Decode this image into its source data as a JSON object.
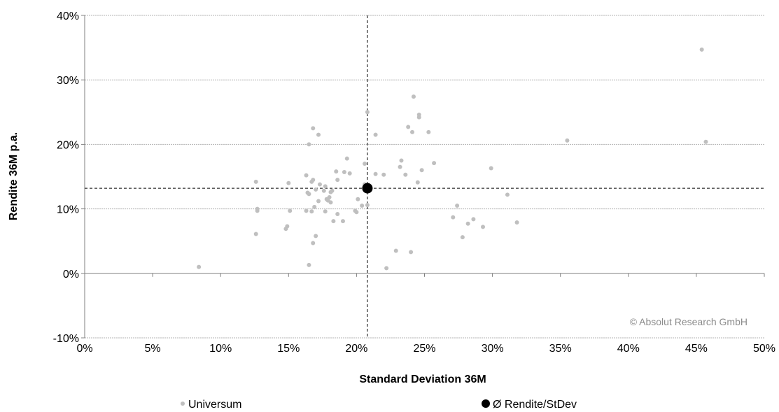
{
  "chart_data": {
    "type": "scatter",
    "xlabel": "Standard Deviation 36M",
    "ylabel": "Rendite 36M p.a.",
    "xlim": [
      0,
      50
    ],
    "ylim": [
      -10,
      40
    ],
    "x_ticks": [
      0,
      5,
      10,
      15,
      20,
      25,
      30,
      35,
      40,
      45,
      50
    ],
    "y_ticks": [
      -10,
      0,
      10,
      20,
      30,
      40
    ],
    "x_tick_labels": [
      "0%",
      "5%",
      "10%",
      "15%",
      "20%",
      "25%",
      "30%",
      "35%",
      "40%",
      "45%",
      "50%"
    ],
    "y_tick_labels": [
      "-10%",
      "0%",
      "10%",
      "20%",
      "30%",
      "40%"
    ],
    "grid": "horizontal",
    "legend_position": "bottom",
    "watermark": "© Absolut Research GmbH",
    "reference_lines": {
      "x": 20.8,
      "y": 13.2
    },
    "series": [
      {
        "name": "Universum",
        "color": "#bfbfbf",
        "points": [
          [
            8.4,
            1.0
          ],
          [
            12.6,
            6.1
          ],
          [
            12.6,
            14.2
          ],
          [
            12.7,
            9.7
          ],
          [
            12.7,
            10.0
          ],
          [
            14.8,
            6.9
          ],
          [
            14.9,
            7.3
          ],
          [
            15.0,
            14.0
          ],
          [
            15.1,
            9.7
          ],
          [
            16.3,
            15.2
          ],
          [
            16.3,
            9.7
          ],
          [
            16.4,
            12.5
          ],
          [
            16.5,
            20.0
          ],
          [
            16.5,
            12.3
          ],
          [
            16.5,
            1.3
          ],
          [
            16.7,
            9.6
          ],
          [
            16.7,
            14.2
          ],
          [
            16.8,
            4.7
          ],
          [
            16.8,
            22.5
          ],
          [
            16.8,
            14.5
          ],
          [
            16.9,
            10.3
          ],
          [
            17.0,
            5.8
          ],
          [
            17.0,
            13.0
          ],
          [
            17.2,
            11.2
          ],
          [
            17.2,
            21.5
          ],
          [
            17.3,
            13.8
          ],
          [
            17.6,
            12.8
          ],
          [
            17.7,
            13.5
          ],
          [
            17.7,
            9.6
          ],
          [
            17.8,
            11.5
          ],
          [
            17.9,
            11.3
          ],
          [
            18.0,
            11.8
          ],
          [
            18.1,
            11.0
          ],
          [
            18.1,
            12.6
          ],
          [
            18.2,
            12.8
          ],
          [
            18.3,
            8.1
          ],
          [
            18.5,
            15.8
          ],
          [
            18.6,
            14.5
          ],
          [
            18.6,
            9.2
          ],
          [
            19.0,
            8.1
          ],
          [
            19.1,
            15.7
          ],
          [
            19.3,
            17.8
          ],
          [
            19.5,
            15.5
          ],
          [
            19.9,
            9.7
          ],
          [
            20.0,
            9.5
          ],
          [
            20.1,
            11.5
          ],
          [
            20.4,
            10.5
          ],
          [
            20.6,
            13.8
          ],
          [
            20.6,
            17.0
          ],
          [
            20.8,
            25.0
          ],
          [
            20.8,
            10.6
          ],
          [
            21.0,
            13.0
          ],
          [
            21.4,
            21.5
          ],
          [
            21.4,
            15.4
          ],
          [
            22.0,
            15.3
          ],
          [
            22.2,
            0.8
          ],
          [
            22.9,
            3.5
          ],
          [
            23.2,
            16.5
          ],
          [
            23.3,
            17.5
          ],
          [
            23.6,
            15.3
          ],
          [
            23.8,
            22.7
          ],
          [
            24.0,
            3.3
          ],
          [
            24.1,
            21.9
          ],
          [
            24.2,
            27.4
          ],
          [
            24.5,
            14.1
          ],
          [
            24.6,
            24.6
          ],
          [
            24.6,
            24.2
          ],
          [
            24.8,
            16.0
          ],
          [
            25.3,
            21.9
          ],
          [
            25.7,
            17.1
          ],
          [
            27.1,
            8.7
          ],
          [
            27.4,
            10.5
          ],
          [
            27.8,
            5.6
          ],
          [
            28.2,
            7.7
          ],
          [
            28.6,
            8.4
          ],
          [
            29.3,
            7.2
          ],
          [
            29.9,
            16.3
          ],
          [
            31.1,
            12.2
          ],
          [
            31.8,
            7.9
          ],
          [
            35.5,
            20.6
          ],
          [
            45.4,
            34.7
          ],
          [
            45.7,
            20.4
          ]
        ]
      },
      {
        "name": "Ø Rendite/StDev",
        "color": "#000000",
        "points": [
          [
            20.8,
            13.2
          ]
        ]
      }
    ]
  }
}
